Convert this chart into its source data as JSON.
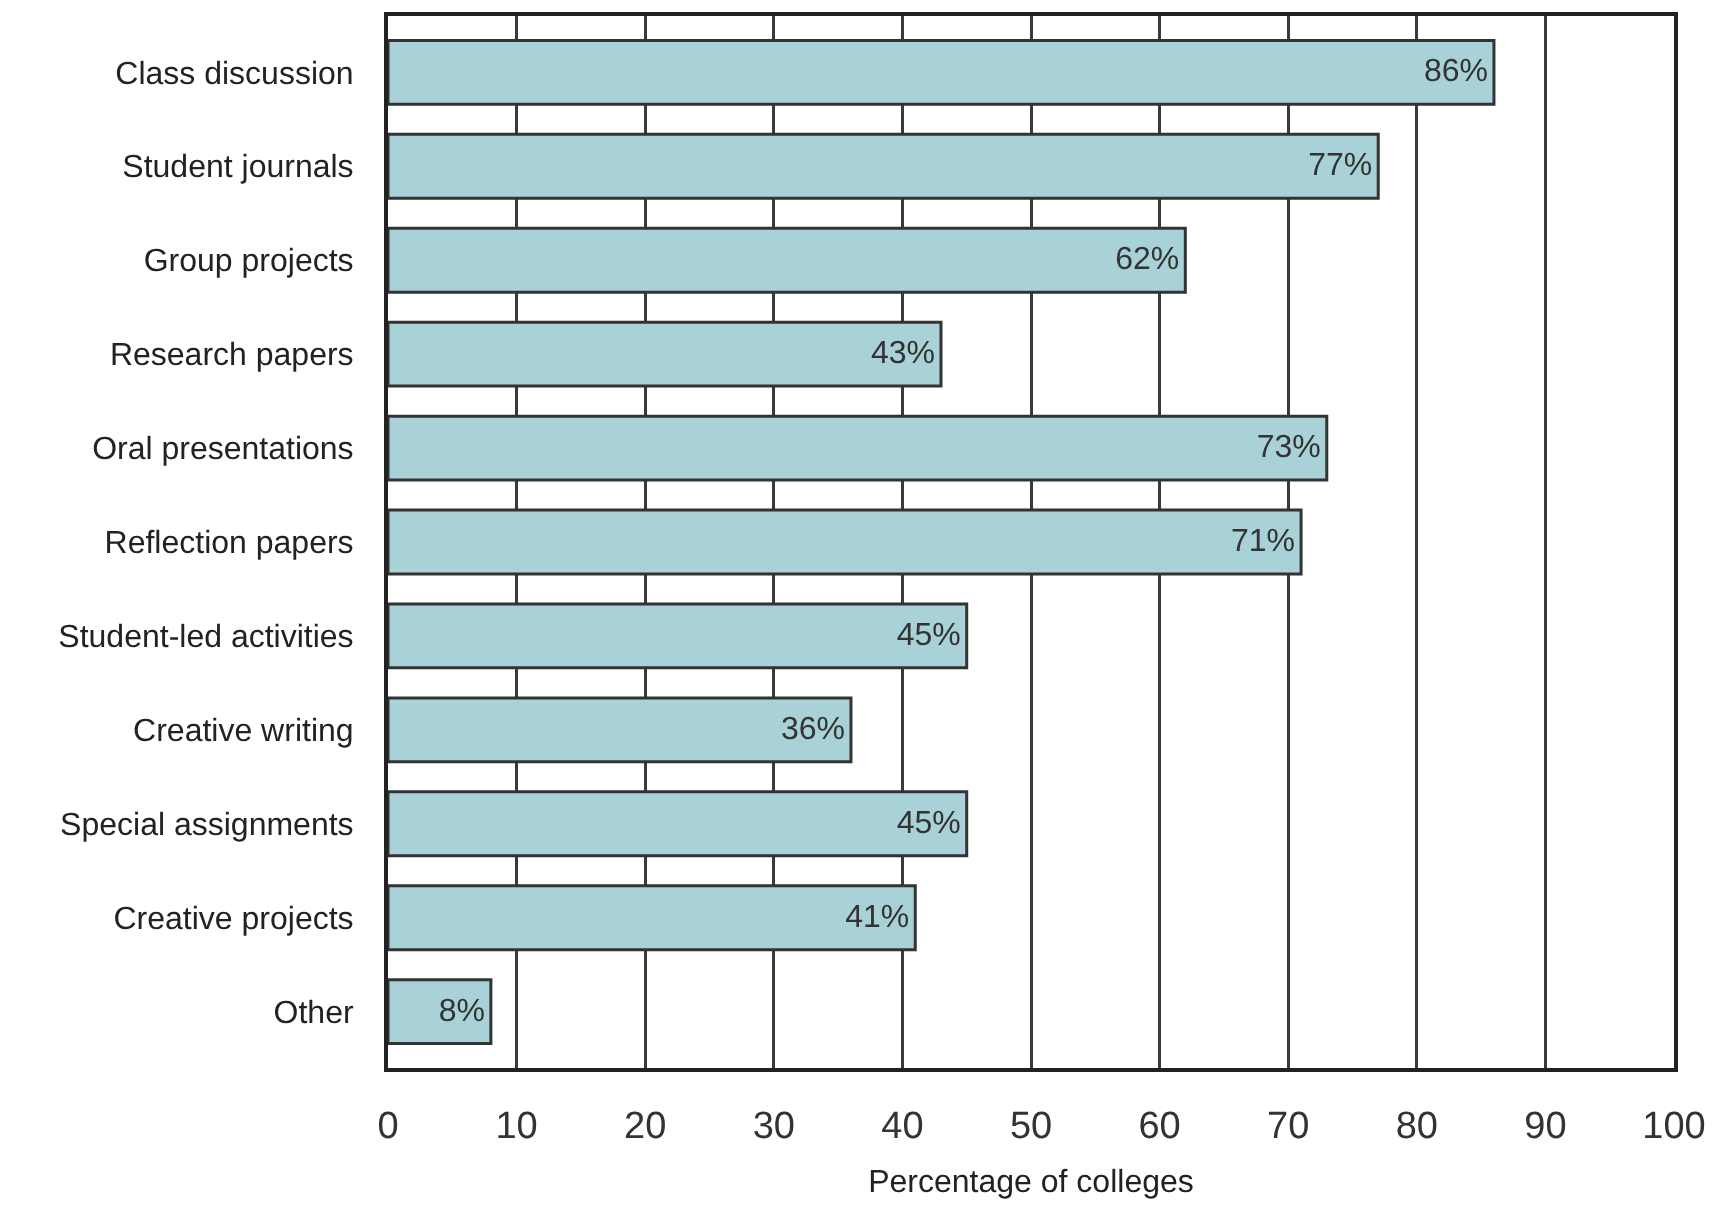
{
  "chart_data": {
    "type": "bar",
    "orientation": "horizontal",
    "categories": [
      "Class discussion",
      "Student journals",
      "Group projects",
      "Research papers",
      "Oral presentations",
      "Reflection papers",
      "Student-led activities",
      "Creative writing",
      "Special assignments",
      "Creative projects",
      "Other"
    ],
    "values": [
      86,
      77,
      62,
      43,
      73,
      71,
      45,
      36,
      45,
      41,
      8
    ],
    "value_labels": [
      "86%",
      "77%",
      "62%",
      "43%",
      "73%",
      "71%",
      "45%",
      "36%",
      "45%",
      "41%",
      "8%"
    ],
    "color": "#a8d1d8",
    "xlabel": "Percentage of colleges",
    "xlim": [
      0,
      100
    ],
    "xticks": [
      0,
      10,
      20,
      30,
      40,
      50,
      60,
      70,
      80,
      90,
      100
    ],
    "grid": "x"
  }
}
